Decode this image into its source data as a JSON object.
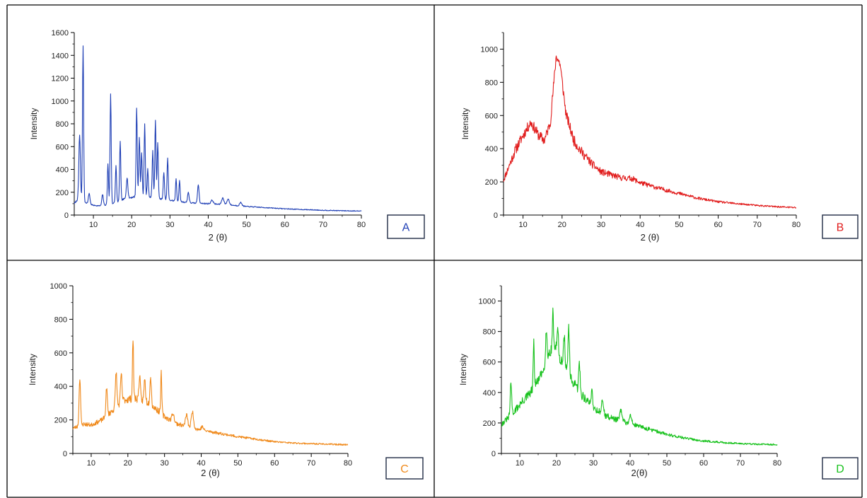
{
  "chart_data": [
    {
      "type": "line",
      "panel_label": "A",
      "color": "#1f3fb5",
      "xlabel": "2 (θ)",
      "ylabel": "Intensity",
      "xlim": [
        5,
        80
      ],
      "ylim": [
        0,
        1600
      ],
      "xticks": [
        10,
        20,
        30,
        40,
        50,
        60,
        70,
        80
      ],
      "yticks": [
        0,
        200,
        400,
        600,
        800,
        1000,
        1200,
        1400,
        1600
      ],
      "base": [
        [
          5,
          100
        ],
        [
          6,
          140
        ],
        [
          8,
          110
        ],
        [
          10,
          85
        ],
        [
          12,
          80
        ],
        [
          15,
          100
        ],
        [
          18,
          140
        ],
        [
          22,
          170
        ],
        [
          25,
          160
        ],
        [
          28,
          140
        ],
        [
          32,
          120
        ],
        [
          36,
          105
        ],
        [
          40,
          100
        ],
        [
          45,
          90
        ],
        [
          50,
          75
        ],
        [
          55,
          65
        ],
        [
          60,
          55
        ],
        [
          65,
          48
        ],
        [
          70,
          42
        ],
        [
          75,
          38
        ],
        [
          80,
          35
        ]
      ],
      "peaks": [
        [
          6.4,
          700,
          0.2
        ],
        [
          7.3,
          1480,
          0.15
        ],
        [
          8.9,
          190,
          0.2
        ],
        [
          12.4,
          180,
          0.2
        ],
        [
          13.8,
          450,
          0.15
        ],
        [
          14.5,
          1060,
          0.15
        ],
        [
          15.9,
          440,
          0.15
        ],
        [
          17.0,
          650,
          0.15
        ],
        [
          18.8,
          330,
          0.2
        ],
        [
          21.3,
          940,
          0.15
        ],
        [
          22.0,
          690,
          0.15
        ],
        [
          22.6,
          550,
          0.15
        ],
        [
          23.4,
          800,
          0.15
        ],
        [
          24.2,
          400,
          0.15
        ],
        [
          25.5,
          560,
          0.15
        ],
        [
          26.2,
          830,
          0.15
        ],
        [
          26.8,
          640,
          0.15
        ],
        [
          28.4,
          380,
          0.15
        ],
        [
          29.4,
          500,
          0.15
        ],
        [
          31.6,
          320,
          0.15
        ],
        [
          32.5,
          300,
          0.15
        ],
        [
          34.8,
          200,
          0.2
        ],
        [
          37.4,
          270,
          0.2
        ],
        [
          41.0,
          130,
          0.3
        ],
        [
          43.8,
          150,
          0.3
        ],
        [
          45.2,
          140,
          0.3
        ],
        [
          48.5,
          110,
          0.3
        ]
      ],
      "noise": 28,
      "seed": 7
    },
    {
      "type": "line",
      "panel_label": "B",
      "color": "#e11d1d",
      "xlabel": "2 (θ)",
      "ylabel": "Intensity",
      "xlim": [
        5,
        80
      ],
      "ylim": [
        0,
        1100
      ],
      "xticks": [
        10,
        20,
        30,
        40,
        50,
        60,
        70,
        80
      ],
      "yticks": [
        0,
        200,
        400,
        600,
        800,
        1000
      ],
      "base": [
        [
          5,
          210
        ],
        [
          8,
          390
        ],
        [
          10,
          480
        ],
        [
          12,
          560
        ],
        [
          14,
          480
        ],
        [
          15.5,
          450
        ],
        [
          17,
          560
        ],
        [
          18.5,
          960
        ],
        [
          19.5,
          910
        ],
        [
          21,
          610
        ],
        [
          23,
          450
        ],
        [
          25,
          380
        ],
        [
          28,
          300
        ],
        [
          30,
          260
        ],
        [
          35,
          225
        ],
        [
          38,
          220
        ],
        [
          40,
          195
        ],
        [
          45,
          160
        ],
        [
          50,
          130
        ],
        [
          55,
          100
        ],
        [
          60,
          80
        ],
        [
          65,
          68
        ],
        [
          70,
          58
        ],
        [
          75,
          50
        ],
        [
          80,
          45
        ]
      ],
      "peaks": [],
      "noise": 40,
      "seed": 11
    },
    {
      "type": "line",
      "panel_label": "C",
      "color": "#f08a1c",
      "xlabel": "2 (θ)",
      "ylabel": "Intensity",
      "xlim": [
        5,
        80
      ],
      "ylim": [
        0,
        1000
      ],
      "xticks": [
        10,
        20,
        30,
        40,
        50,
        60,
        70,
        80
      ],
      "yticks": [
        0,
        200,
        400,
        600,
        800,
        1000
      ],
      "base": [
        [
          5,
          150
        ],
        [
          8,
          175
        ],
        [
          10,
          170
        ],
        [
          13,
          200
        ],
        [
          16,
          260
        ],
        [
          19,
          320
        ],
        [
          22,
          330
        ],
        [
          25,
          310
        ],
        [
          28,
          260
        ],
        [
          30,
          220
        ],
        [
          33,
          180
        ],
        [
          36,
          160
        ],
        [
          40,
          140
        ],
        [
          45,
          120
        ],
        [
          50,
          100
        ],
        [
          55,
          85
        ],
        [
          60,
          70
        ],
        [
          65,
          62
        ],
        [
          70,
          58
        ],
        [
          75,
          55
        ],
        [
          80,
          52
        ]
      ],
      "peaks": [
        [
          6.9,
          450,
          0.2
        ],
        [
          14.2,
          390,
          0.2
        ],
        [
          16.8,
          490,
          0.2
        ],
        [
          18.2,
          470,
          0.2
        ],
        [
          21.4,
          680,
          0.15
        ],
        [
          23.2,
          460,
          0.2
        ],
        [
          24.6,
          440,
          0.2
        ],
        [
          26.2,
          460,
          0.2
        ],
        [
          29.1,
          480,
          0.15
        ],
        [
          32.3,
          240,
          0.3
        ],
        [
          36.0,
          230,
          0.3
        ],
        [
          37.6,
          250,
          0.3
        ],
        [
          40.3,
          160,
          0.3
        ]
      ],
      "noise": 36,
      "seed": 23
    },
    {
      "type": "line",
      "panel_label": "D",
      "color": "#19c21e",
      "xlabel": "2(θ)",
      "ylabel": "Intensity",
      "xlim": [
        5,
        80
      ],
      "ylim": [
        0,
        1100
      ],
      "xticks": [
        10,
        20,
        30,
        40,
        50,
        60,
        70,
        80
      ],
      "yticks": [
        0,
        200,
        400,
        600,
        800,
        1000
      ],
      "base": [
        [
          5,
          190
        ],
        [
          8,
          260
        ],
        [
          10,
          320
        ],
        [
          13,
          400
        ],
        [
          16,
          520
        ],
        [
          18,
          660
        ],
        [
          19.5,
          700
        ],
        [
          21,
          620
        ],
        [
          24,
          480
        ],
        [
          27,
          380
        ],
        [
          30,
          300
        ],
        [
          33,
          250
        ],
        [
          36,
          225
        ],
        [
          40,
          195
        ],
        [
          45,
          160
        ],
        [
          50,
          125
        ],
        [
          55,
          100
        ],
        [
          60,
          82
        ],
        [
          65,
          72
        ],
        [
          70,
          65
        ],
        [
          75,
          60
        ],
        [
          80,
          58
        ]
      ],
      "peaks": [
        [
          7.6,
          460,
          0.2
        ],
        [
          13.8,
          720,
          0.15
        ],
        [
          17.2,
          800,
          0.2
        ],
        [
          19.0,
          950,
          0.15
        ],
        [
          20.3,
          820,
          0.2
        ],
        [
          22.1,
          770,
          0.2
        ],
        [
          23.3,
          820,
          0.2
        ],
        [
          26.2,
          590,
          0.2
        ],
        [
          29.6,
          420,
          0.2
        ],
        [
          32.5,
          340,
          0.3
        ],
        [
          37.5,
          280,
          0.3
        ],
        [
          40.2,
          250,
          0.3
        ]
      ],
      "noise": 42,
      "seed": 31
    }
  ]
}
